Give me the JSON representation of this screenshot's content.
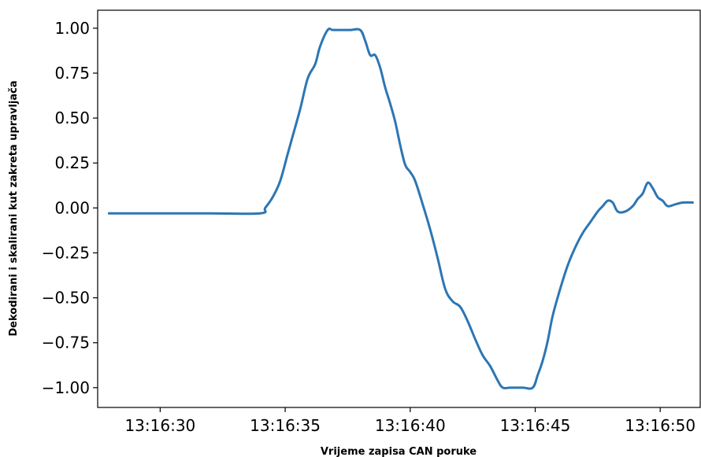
{
  "chart_data": {
    "type": "line",
    "title": "",
    "xlabel": "Vrijeme zapisa CAN poruke",
    "ylabel": "Dekodirani i skalirani kut zakreta upravljača",
    "x_unit": "seconds within 13:16",
    "xlim": [
      27.5,
      51.6
    ],
    "ylim": [
      -1.11,
      1.1
    ],
    "grid": false,
    "line_color": "#2c76b4",
    "x_ticks": [
      {
        "value": 30,
        "label": "13:16:30"
      },
      {
        "value": 35,
        "label": "13:16:35"
      },
      {
        "value": 40,
        "label": "13:16:40"
      },
      {
        "value": 45,
        "label": "13:16:45"
      },
      {
        "value": 50,
        "label": "13:16:50"
      }
    ],
    "y_ticks": [
      {
        "value": 1.0,
        "label": "1.00"
      },
      {
        "value": 0.75,
        "label": "0.75"
      },
      {
        "value": 0.5,
        "label": "0.50"
      },
      {
        "value": 0.25,
        "label": "0.25"
      },
      {
        "value": 0.0,
        "label": "0.00"
      },
      {
        "value": -0.25,
        "label": "−0.25"
      },
      {
        "value": -0.5,
        "label": "−0.50"
      },
      {
        "value": -0.75,
        "label": "−0.75"
      },
      {
        "value": -1.0,
        "label": "−1.00"
      }
    ],
    "series": [
      {
        "name": "",
        "x": [
          27.95,
          30.0,
          32.0,
          34.0,
          34.2,
          34.5,
          34.8,
          35.1,
          35.3,
          35.6,
          35.9,
          36.2,
          36.4,
          36.7,
          36.9,
          37.2,
          37.6,
          38.0,
          38.2,
          38.4,
          38.6,
          38.8,
          39.0,
          39.2,
          39.4,
          39.6,
          39.8,
          40.0,
          40.2,
          40.5,
          40.8,
          41.1,
          41.4,
          41.7,
          42.0,
          42.3,
          42.6,
          42.9,
          43.2,
          43.5,
          43.7,
          44.0,
          44.5,
          44.9,
          45.1,
          45.3,
          45.5,
          45.7,
          46.0,
          46.3,
          46.6,
          46.9,
          47.2,
          47.5,
          47.7,
          47.9,
          48.1,
          48.3,
          48.6,
          48.9,
          49.1,
          49.3,
          49.5,
          49.7,
          49.9,
          50.1,
          50.3,
          50.6,
          50.9,
          51.3
        ],
        "y": [
          -0.03,
          -0.03,
          -0.03,
          -0.03,
          0.0,
          0.06,
          0.15,
          0.3,
          0.4,
          0.55,
          0.72,
          0.8,
          0.9,
          0.99,
          0.99,
          0.99,
          0.99,
          0.99,
          0.93,
          0.85,
          0.85,
          0.78,
          0.67,
          0.58,
          0.48,
          0.35,
          0.24,
          0.2,
          0.15,
          0.02,
          -0.12,
          -0.28,
          -0.45,
          -0.52,
          -0.55,
          -0.63,
          -0.73,
          -0.82,
          -0.88,
          -0.96,
          -1.0,
          -1.0,
          -1.0,
          -1.0,
          -0.93,
          -0.85,
          -0.74,
          -0.6,
          -0.45,
          -0.32,
          -0.22,
          -0.14,
          -0.08,
          -0.02,
          0.01,
          0.04,
          0.03,
          -0.02,
          -0.02,
          0.01,
          0.05,
          0.08,
          0.14,
          0.11,
          0.06,
          0.04,
          0.01,
          0.02,
          0.03,
          0.03
        ]
      }
    ]
  }
}
